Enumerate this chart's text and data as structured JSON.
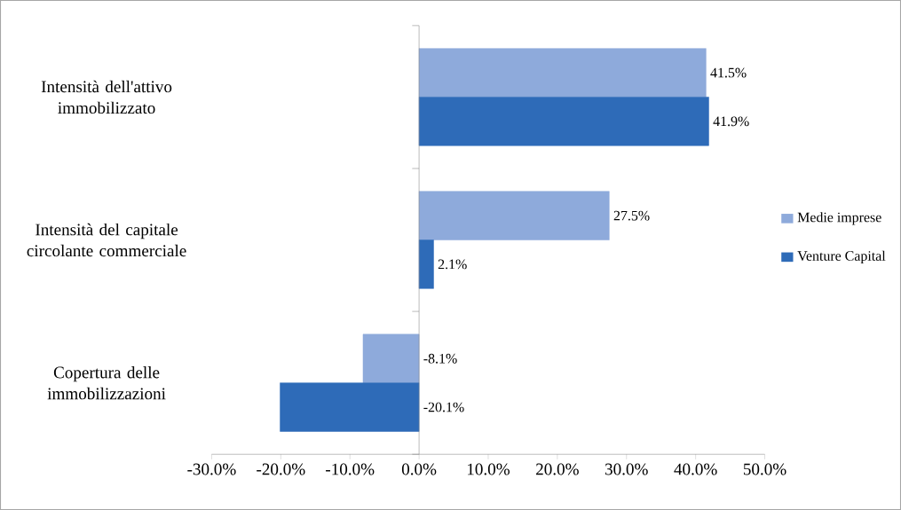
{
  "chart_data": {
    "type": "bar",
    "orientation": "horizontal",
    "categories": [
      "Intensità dell'attivo immobilizzato",
      "Intensità del capitale circolante commerciale",
      "Copertura delle immobilizzazioni"
    ],
    "series": [
      {
        "name": "Medie imprese",
        "color": "#8eaadb",
        "values": [
          41.5,
          27.5,
          -8.1
        ],
        "value_labels": [
          "41.5%",
          "27.5%",
          "-8.1%"
        ]
      },
      {
        "name": "Venture Capital",
        "color": "#2e6bb8",
        "values": [
          41.9,
          2.1,
          -20.1
        ],
        "value_labels": [
          "41.9%",
          "2.1%",
          "-20.1%"
        ]
      }
    ],
    "xlim": [
      -30,
      50
    ],
    "xticks": [
      {
        "value": -30,
        "label": "-30.0%"
      },
      {
        "value": -20,
        "label": "-20.0%"
      },
      {
        "value": -10,
        "label": "-10.0%"
      },
      {
        "value": 0,
        "label": "0.0%"
      },
      {
        "value": 10,
        "label": "10.0%"
      },
      {
        "value": 20,
        "label": "20.0%"
      },
      {
        "value": 30,
        "label": "30.0%"
      },
      {
        "value": 40,
        "label": "40.0%"
      },
      {
        "value": 50,
        "label": "50.0%"
      }
    ],
    "legend": "right"
  }
}
